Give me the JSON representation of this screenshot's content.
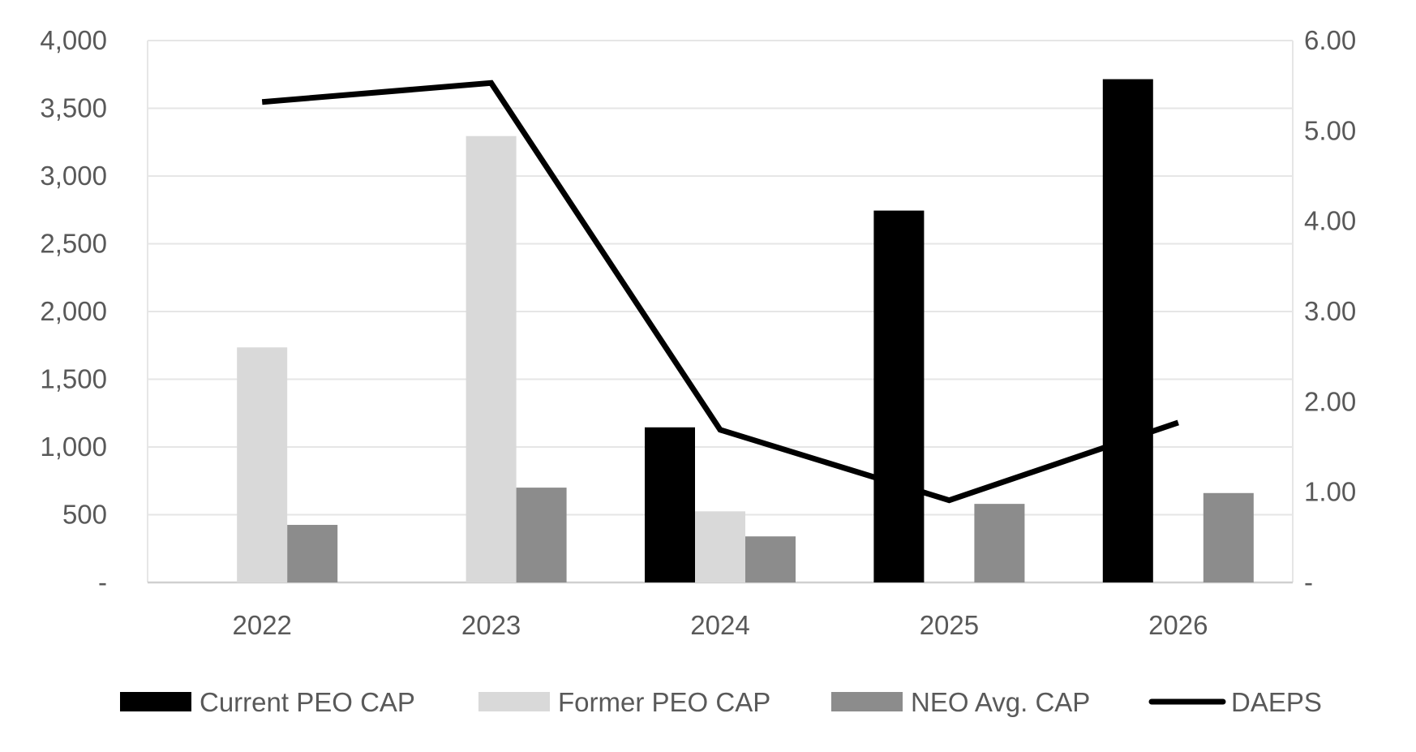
{
  "chart_data": {
    "type": "bar",
    "categories": [
      "2022",
      "2023",
      "2024",
      "2025",
      "2026"
    ],
    "series": [
      {
        "name": "Current PEO CAP",
        "kind": "bar",
        "axis": "left",
        "color": "#000000",
        "values": [
          0,
          0,
          1145,
          2745,
          3715
        ]
      },
      {
        "name": "Former PEO CAP",
        "kind": "bar",
        "axis": "left",
        "color": "#d9d9d9",
        "values": [
          1735,
          3295,
          525,
          0,
          0
        ]
      },
      {
        "name": "NEO Avg. CAP",
        "kind": "bar",
        "axis": "left",
        "color": "#8c8c8c",
        "values": [
          425,
          700,
          340,
          580,
          660
        ]
      },
      {
        "name": "DAEPS",
        "kind": "line",
        "axis": "right",
        "color": "#000000",
        "values": [
          5.32,
          5.53,
          1.69,
          0.91,
          1.77
        ]
      }
    ],
    "left_axis": {
      "ylim": [
        0,
        4000
      ],
      "ticks": [
        0,
        500,
        1000,
        1500,
        2000,
        2500,
        3000,
        3500,
        4000
      ],
      "tick_labels": [
        "-",
        "500",
        "1,000",
        "1,500",
        "2,000",
        "2,500",
        "3,000",
        "3,500",
        "4,000"
      ]
    },
    "right_axis": {
      "ylim": [
        0,
        6
      ],
      "ticks": [
        0,
        1,
        2,
        3,
        4,
        5,
        6
      ],
      "tick_labels": [
        "-",
        "1.00",
        "2.00",
        "3.00",
        "4.00",
        "5.00",
        "6.00"
      ]
    },
    "grid": true,
    "legend_position": "bottom"
  }
}
